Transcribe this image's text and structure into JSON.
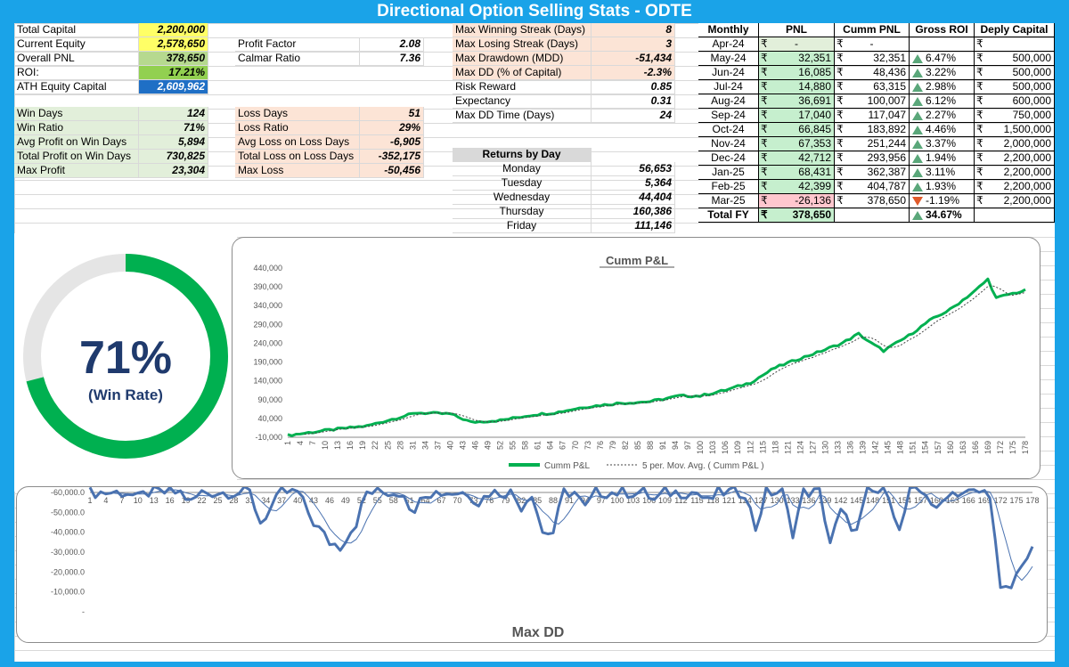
{
  "title": "Directional Option Selling Stats - ODTE",
  "stats_left": [
    {
      "label": "Total Capital",
      "value": "2,200,000",
      "style": "bg-yellow"
    },
    {
      "label": "Current Equity",
      "value": "2,578,650",
      "style": "bg-yellow"
    },
    {
      "label": "Overall PNL",
      "value": "378,650",
      "style": "bg-green2"
    },
    {
      "label": "ROI:",
      "value": "17.21%",
      "style": "bg-green1"
    },
    {
      "label": "ATH Equity Capital",
      "value": "2,609,962",
      "style": "bg-blue"
    }
  ],
  "win_stats": [
    {
      "label": "Win Days",
      "value": "124"
    },
    {
      "label": "Win Ratio",
      "value": "71%"
    },
    {
      "label": "Avg Profit on Win Days",
      "value": "5,894"
    },
    {
      "label": "Total Profit on Win Days",
      "value": "730,825"
    },
    {
      "label": "Max Profit",
      "value": "23,304"
    }
  ],
  "ratios": [
    {
      "label": "Profit Factor",
      "value": "2.08"
    },
    {
      "label": "Calmar Ratio",
      "value": "7.36"
    }
  ],
  "loss_stats": [
    {
      "label": "Loss Days",
      "value": "51"
    },
    {
      "label": "Loss Ratio",
      "value": "29%"
    },
    {
      "label": "Avg Loss on Loss Days",
      "value": "-6,905"
    },
    {
      "label": "Total Loss on Loss Days",
      "value": "-352,175"
    },
    {
      "label": "Max Loss",
      "value": "-50,456"
    }
  ],
  "streaks": [
    {
      "label": "Max Winning Streak (Days)",
      "value": "8",
      "peach": true
    },
    {
      "label": "Max Losing Streak (Days)",
      "value": "3",
      "peach": true
    },
    {
      "label": "Max Drawdown (MDD)",
      "value": "-51,434",
      "peach": true
    },
    {
      "label": "Max DD (% of Capital)",
      "value": "-2.3%",
      "peach": true
    },
    {
      "label": "Risk Reward",
      "value": "0.85",
      "peach": false
    },
    {
      "label": "Expectancy",
      "value": "0.31",
      "peach": false
    },
    {
      "label": "Max DD Time (Days)",
      "value": "24",
      "peach": false
    }
  ],
  "returns_by_day": {
    "header": "Returns by Day",
    "rows": [
      {
        "day": "Monday",
        "value": "56,653"
      },
      {
        "day": "Tuesday",
        "value": "5,364"
      },
      {
        "day": "Wednesday",
        "value": "44,404"
      },
      {
        "day": "Thursday",
        "value": "160,386"
      },
      {
        "day": "Friday",
        "value": "111,146"
      }
    ]
  },
  "monthly": {
    "headers": [
      "Monthly",
      "PNL",
      "Cumm PNL",
      "Gross ROI",
      "Deply Capital"
    ],
    "currency": "₹",
    "rows": [
      {
        "month": "Apr-24",
        "pnl": "-",
        "cumm": "-",
        "roi": "",
        "dir": "",
        "cap": ""
      },
      {
        "month": "May-24",
        "pnl": "32,351",
        "cumm": "32,351",
        "roi": "6.47%",
        "dir": "up",
        "cap": "500,000"
      },
      {
        "month": "Jun-24",
        "pnl": "16,085",
        "cumm": "48,436",
        "roi": "3.22%",
        "dir": "up",
        "cap": "500,000"
      },
      {
        "month": "Jul-24",
        "pnl": "14,880",
        "cumm": "63,315",
        "roi": "2.98%",
        "dir": "up",
        "cap": "500,000"
      },
      {
        "month": "Aug-24",
        "pnl": "36,691",
        "cumm": "100,007",
        "roi": "6.12%",
        "dir": "up",
        "cap": "600,000"
      },
      {
        "month": "Sep-24",
        "pnl": "17,040",
        "cumm": "117,047",
        "roi": "2.27%",
        "dir": "up",
        "cap": "750,000"
      },
      {
        "month": "Oct-24",
        "pnl": "66,845",
        "cumm": "183,892",
        "roi": "4.46%",
        "dir": "up",
        "cap": "1,500,000"
      },
      {
        "month": "Nov-24",
        "pnl": "67,353",
        "cumm": "251,244",
        "roi": "3.37%",
        "dir": "up",
        "cap": "2,000,000"
      },
      {
        "month": "Dec-24",
        "pnl": "42,712",
        "cumm": "293,956",
        "roi": "1.94%",
        "dir": "up",
        "cap": "2,200,000"
      },
      {
        "month": "Jan-25",
        "pnl": "68,431",
        "cumm": "362,387",
        "roi": "3.11%",
        "dir": "up",
        "cap": "2,200,000"
      },
      {
        "month": "Feb-25",
        "pnl": "42,399",
        "cumm": "404,787",
        "roi": "1.93%",
        "dir": "up",
        "cap": "2,200,000"
      },
      {
        "month": "Mar-25",
        "pnl": "-26,136",
        "cumm": "378,650",
        "roi": "-1.19%",
        "dir": "down",
        "cap": "2,200,000"
      }
    ],
    "total": {
      "label": "Total FY",
      "pnl": "378,650",
      "roi": "34.67%",
      "dir": "up"
    }
  },
  "win_rate": {
    "percent": "71%",
    "label": "(Win Rate)",
    "fraction": 0.71,
    "color": "#00b050",
    "track": "#e5e5e5"
  },
  "chart_data": [
    {
      "type": "line",
      "title": "Cumm P&L",
      "ylim": [
        -10000,
        440000
      ],
      "yticks": [
        "-10,000",
        "40,000",
        "90,000",
        "140,000",
        "190,000",
        "240,000",
        "290,000",
        "340,000",
        "390,000",
        "440,000"
      ],
      "x": [
        1,
        178
      ],
      "series": [
        {
          "name": "Cumm P&L",
          "color": "#00b050",
          "anchors": [
            [
              1,
              -5000
            ],
            [
              10,
              8000
            ],
            [
              20,
              20000
            ],
            [
              25,
              35000
            ],
            [
              32,
              55000
            ],
            [
              40,
              52000
            ],
            [
              45,
              30000
            ],
            [
              52,
              35000
            ],
            [
              60,
              50000
            ],
            [
              65,
              55000
            ],
            [
              72,
              70000
            ],
            [
              80,
              80000
            ],
            [
              88,
              85000
            ],
            [
              95,
              100000
            ],
            [
              100,
              100000
            ],
            [
              106,
              115000
            ],
            [
              112,
              135000
            ],
            [
              118,
              175000
            ],
            [
              124,
              200000
            ],
            [
              128,
              215000
            ],
            [
              134,
              240000
            ],
            [
              138,
              265000
            ],
            [
              141,
              240000
            ],
            [
              144,
              220000
            ],
            [
              150,
              260000
            ],
            [
              155,
              300000
            ],
            [
              160,
              330000
            ],
            [
              166,
              380000
            ],
            [
              169,
              410000
            ],
            [
              171,
              360000
            ],
            [
              174,
              370000
            ],
            [
              178,
              380000
            ]
          ]
        },
        {
          "name": "5 per. Mov. Avg. ( Cumm P&L )",
          "color": "#444444",
          "dashed": true
        }
      ]
    },
    {
      "type": "line",
      "title": "Max DD",
      "ylim": [
        -60000,
        0
      ],
      "yticks": [
        "-",
        "-10,000.0",
        "-20,000.0",
        "-30,000.0",
        "-40,000.0",
        "-50,000.0",
        "-60,000.0"
      ],
      "x": [
        1,
        178
      ],
      "series": [
        {
          "name": "Max DD",
          "color": "#4a72b0",
          "anchors": [
            [
              1,
              0
            ],
            [
              8,
              0
            ],
            [
              10,
              -3000
            ],
            [
              12,
              0
            ],
            [
              18,
              0
            ],
            [
              20,
              -5000
            ],
            [
              22,
              0
            ],
            [
              28,
              0
            ],
            [
              31,
              0
            ],
            [
              33,
              -15000
            ],
            [
              35,
              -8000
            ],
            [
              37,
              0
            ],
            [
              40,
              0
            ],
            [
              43,
              -15000
            ],
            [
              46,
              -25000
            ],
            [
              48,
              -27000
            ],
            [
              51,
              -15000
            ],
            [
              53,
              0
            ],
            [
              60,
              0
            ],
            [
              62,
              -12000
            ],
            [
              63,
              0
            ],
            [
              72,
              0
            ],
            [
              74,
              -5000
            ],
            [
              76,
              0
            ],
            [
              80,
              0
            ],
            [
              82,
              -7000
            ],
            [
              84,
              0
            ],
            [
              86,
              -20000
            ],
            [
              88,
              -20000
            ],
            [
              90,
              0
            ],
            [
              92,
              0
            ],
            [
              94,
              -8000
            ],
            [
              96,
              0
            ],
            [
              105,
              0
            ],
            [
              107,
              -4000
            ],
            [
              109,
              0
            ],
            [
              115,
              0
            ],
            [
              117,
              -5000
            ],
            [
              119,
              0
            ],
            [
              124,
              0
            ],
            [
              126,
              -18000
            ],
            [
              128,
              0
            ],
            [
              131,
              0
            ],
            [
              133,
              -20000
            ],
            [
              135,
              0
            ],
            [
              138,
              0
            ],
            [
              140,
              -25000
            ],
            [
              142,
              -10000
            ],
            [
              145,
              -20000
            ],
            [
              147,
              0
            ],
            [
              151,
              0
            ],
            [
              153,
              -20000
            ],
            [
              155,
              0
            ],
            [
              158,
              0
            ],
            [
              160,
              -10000
            ],
            [
              162,
              0
            ],
            [
              170,
              0
            ],
            [
              172,
              -50000
            ],
            [
              174,
              -48000
            ],
            [
              176,
              -35000
            ],
            [
              178,
              -30000
            ]
          ]
        }
      ]
    }
  ]
}
